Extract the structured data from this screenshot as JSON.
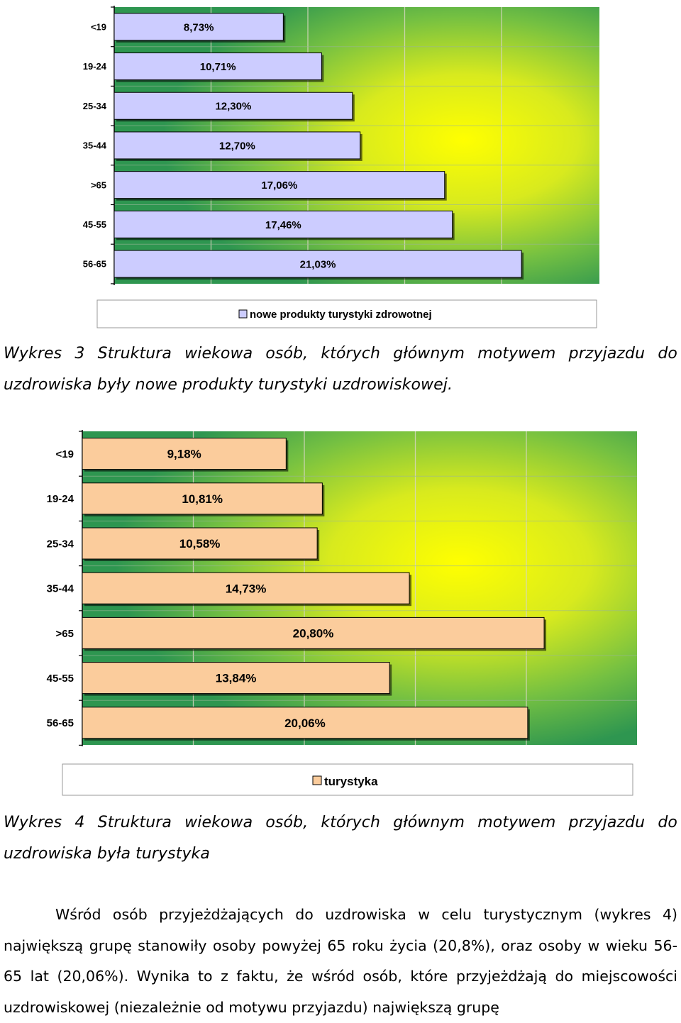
{
  "chart_data": [
    {
      "type": "bar",
      "orientation": "horizontal",
      "categories": [
        "<19",
        "19-24",
        "25-34",
        "35-44",
        ">65",
        "45-55",
        "56-65"
      ],
      "series": [
        {
          "name": "nowe produkty turystyki zdrowotnej",
          "values": [
            8.73,
            10.71,
            12.3,
            12.7,
            17.06,
            17.46,
            21.03
          ],
          "labels": [
            "8,73%",
            "10,71%",
            "12,30%",
            "12,70%",
            "17,06%",
            "17,46%",
            "21,03%"
          ],
          "color": "#ccccff"
        }
      ],
      "xlim": [
        0,
        25
      ],
      "grid": true,
      "legend_position": "bottom"
    },
    {
      "type": "bar",
      "orientation": "horizontal",
      "categories": [
        "<19",
        "19-24",
        "25-34",
        "35-44",
        ">65",
        "45-55",
        "56-65"
      ],
      "series": [
        {
          "name": "turystyka",
          "values": [
            9.18,
            10.81,
            10.58,
            14.73,
            20.8,
            13.84,
            20.06
          ],
          "labels": [
            "9,18%",
            "10,81%",
            "10,58%",
            "14,73%",
            "20,80%",
            "13,84%",
            "20,06%"
          ],
          "color": "#fbcc9c"
        }
      ],
      "xlim": [
        0,
        25
      ],
      "grid": true,
      "legend_position": "bottom"
    }
  ],
  "captions": [
    "Wykres 3 Struktura wiekowa osób, których głównym motywem przyjazdu do uzdrowiska były nowe produkty turystyki uzdrowiskowej.",
    "Wykres 4 Struktura wiekowa osób, których głównym motywem przyjazdu do uzdrowiska była turystyka"
  ],
  "paragraph": "Wśród osób przyjeżdżających do uzdrowiska w celu turystycznym (wykres 4) największą grupę stanowiły osoby powyżej 65 roku życia (20,8%), oraz osoby w wieku 56-65 lat (20,06%). Wynika to z faktu, że wśród osób, które przyjeżdżają do miejscowości uzdrowiskowej (niezależnie od motywu przyjazdu) największą grupę",
  "colors": {
    "plot_center": "#ffff00",
    "plot_edge": "#2e9650",
    "bar_border": "#000000"
  }
}
